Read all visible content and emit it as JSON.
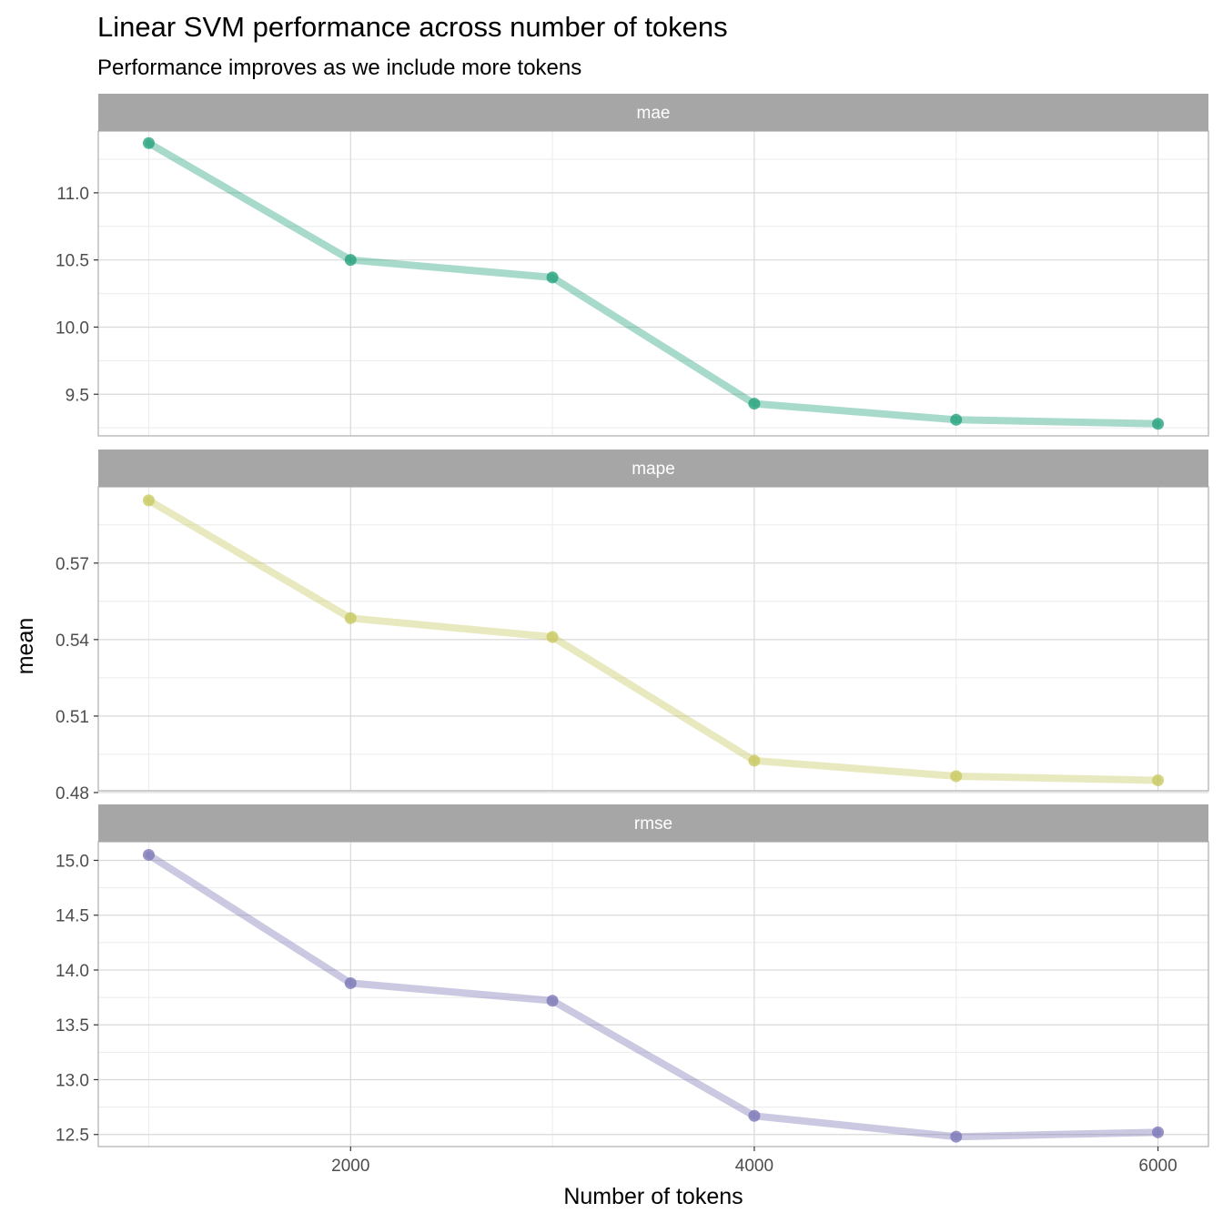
{
  "chart_data": {
    "type": "line",
    "title": "Linear SVM performance across number of tokens",
    "subtitle": "Performance improves as we include more tokens",
    "xlabel": "Number of tokens",
    "ylabel": "mean",
    "x": [
      1000,
      2000,
      3000,
      4000,
      5000,
      6000
    ],
    "x_ticks": [
      "2000",
      "4000",
      "6000"
    ],
    "grid": true,
    "legend": "none",
    "panels": [
      {
        "name": "mae",
        "color": "#1b9e77",
        "values": [
          11.37,
          10.5,
          10.37,
          9.43,
          9.31,
          9.28
        ],
        "ylim": [
          9.19,
          11.46
        ],
        "y_ticks": [
          "9.5",
          "10.0",
          "10.5",
          "11.0"
        ]
      },
      {
        "name": "mape",
        "color": "#c5c55a",
        "values": [
          0.5946,
          0.5484,
          0.541,
          0.4925,
          0.4864,
          0.4848
        ],
        "ylim": [
          0.4807,
          0.5999
        ],
        "y_ticks": [
          "0.48",
          "0.51",
          "0.54",
          "0.57"
        ]
      },
      {
        "name": "rmse",
        "color": "#7570b3",
        "values": [
          15.05,
          13.88,
          13.72,
          12.67,
          12.48,
          12.52
        ],
        "ylim": [
          12.39,
          15.17
        ],
        "y_ticks": [
          "12.5",
          "13.0",
          "13.5",
          "14.0",
          "14.5",
          "15.0"
        ]
      }
    ]
  }
}
